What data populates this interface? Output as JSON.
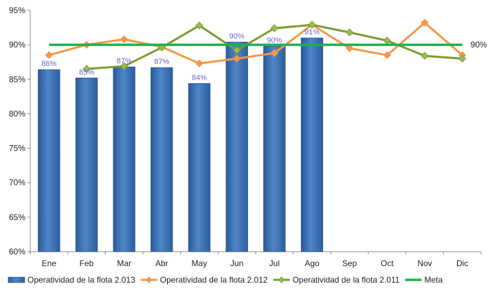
{
  "chart_data": {
    "type": "bar",
    "categories": [
      "Ene",
      "Feb",
      "Mar",
      "Abr",
      "May",
      "Jun",
      "Jul",
      "Ago",
      "Sep",
      "Oct",
      "Nov",
      "Dic"
    ],
    "ylim": [
      60,
      95
    ],
    "y_ticks": [
      60,
      65,
      70,
      75,
      80,
      85,
      90,
      95
    ],
    "y_tick_format": "percent",
    "grid": false,
    "legend_position": "bottom",
    "series": [
      {
        "name": "Operatividad de la flota 2.013",
        "kind": "bar",
        "color": "#3d72b4",
        "values": [
          86.4,
          85.2,
          86.8,
          86.7,
          84.4,
          90.4,
          89.8,
          91.0,
          null,
          null,
          null,
          null
        ],
        "labels": [
          "86%",
          "85%",
          "87%",
          "87%",
          "84%",
          "90%",
          "90%",
          "91%",
          "",
          "",
          "",
          ""
        ]
      },
      {
        "name": "Operatividad de la flota 2.012",
        "kind": "line",
        "color": "#f79646",
        "marker_color": "#f79646",
        "values": [
          88.5,
          90.0,
          90.8,
          89.7,
          87.3,
          88.0,
          88.8,
          92.9,
          89.5,
          88.5,
          93.2,
          88.5
        ]
      },
      {
        "name": "Operatividad de la flota 2.011",
        "kind": "line",
        "color": "#7a9c2e",
        "marker_color": "#9bbb59",
        "values": [
          null,
          86.5,
          86.9,
          89.6,
          92.8,
          89.2,
          92.4,
          92.9,
          91.8,
          90.6,
          88.4,
          88.0
        ]
      },
      {
        "name": "Meta",
        "kind": "line",
        "color": "#1fb050",
        "values": [
          90,
          90,
          90,
          90,
          90,
          90,
          90,
          90,
          90,
          90,
          90,
          90
        ],
        "end_label": "90%"
      }
    ]
  }
}
